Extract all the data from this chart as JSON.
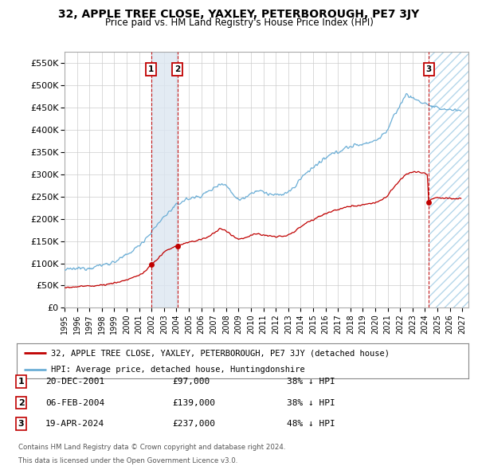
{
  "title": "32, APPLE TREE CLOSE, YAXLEY, PETERBOROUGH, PE7 3JY",
  "subtitle": "Price paid vs. HM Land Registry's House Price Index (HPI)",
  "ylabel_vals": [
    "£0",
    "£50K",
    "£100K",
    "£150K",
    "£200K",
    "£250K",
    "£300K",
    "£350K",
    "£400K",
    "£450K",
    "£500K",
    "£550K"
  ],
  "yticks": [
    0,
    50000,
    100000,
    150000,
    200000,
    250000,
    300000,
    350000,
    400000,
    450000,
    500000,
    550000
  ],
  "ylim": [
    0,
    575000
  ],
  "xlim_start": 1995.0,
  "xlim_end": 2027.5,
  "transactions": [
    {
      "date": 2001.97,
      "price": 97000,
      "label": "1"
    },
    {
      "date": 2004.09,
      "price": 139000,
      "label": "2"
    },
    {
      "date": 2024.3,
      "price": 237000,
      "label": "3"
    }
  ],
  "transaction_table": [
    {
      "num": "1",
      "date": "20-DEC-2001",
      "price": "£97,000",
      "desc": "38% ↓ HPI"
    },
    {
      "num": "2",
      "date": "06-FEB-2004",
      "price": "£139,000",
      "desc": "38% ↓ HPI"
    },
    {
      "num": "3",
      "date": "19-APR-2024",
      "price": "£237,000",
      "desc": "48% ↓ HPI"
    }
  ],
  "legend_line1": "32, APPLE TREE CLOSE, YAXLEY, PETERBOROUGH, PE7 3JY (detached house)",
  "legend_line2": "HPI: Average price, detached house, Huntingdonshire",
  "footer1": "Contains HM Land Registry data © Crown copyright and database right 2024.",
  "footer2": "This data is licensed under the Open Government Licence v3.0.",
  "hpi_color": "#6baed6",
  "price_color": "#c00000",
  "shade_color": "#dce6f1",
  "hatch_color": "#6baed6",
  "background_color": "#ffffff",
  "grid_color": "#cccccc"
}
